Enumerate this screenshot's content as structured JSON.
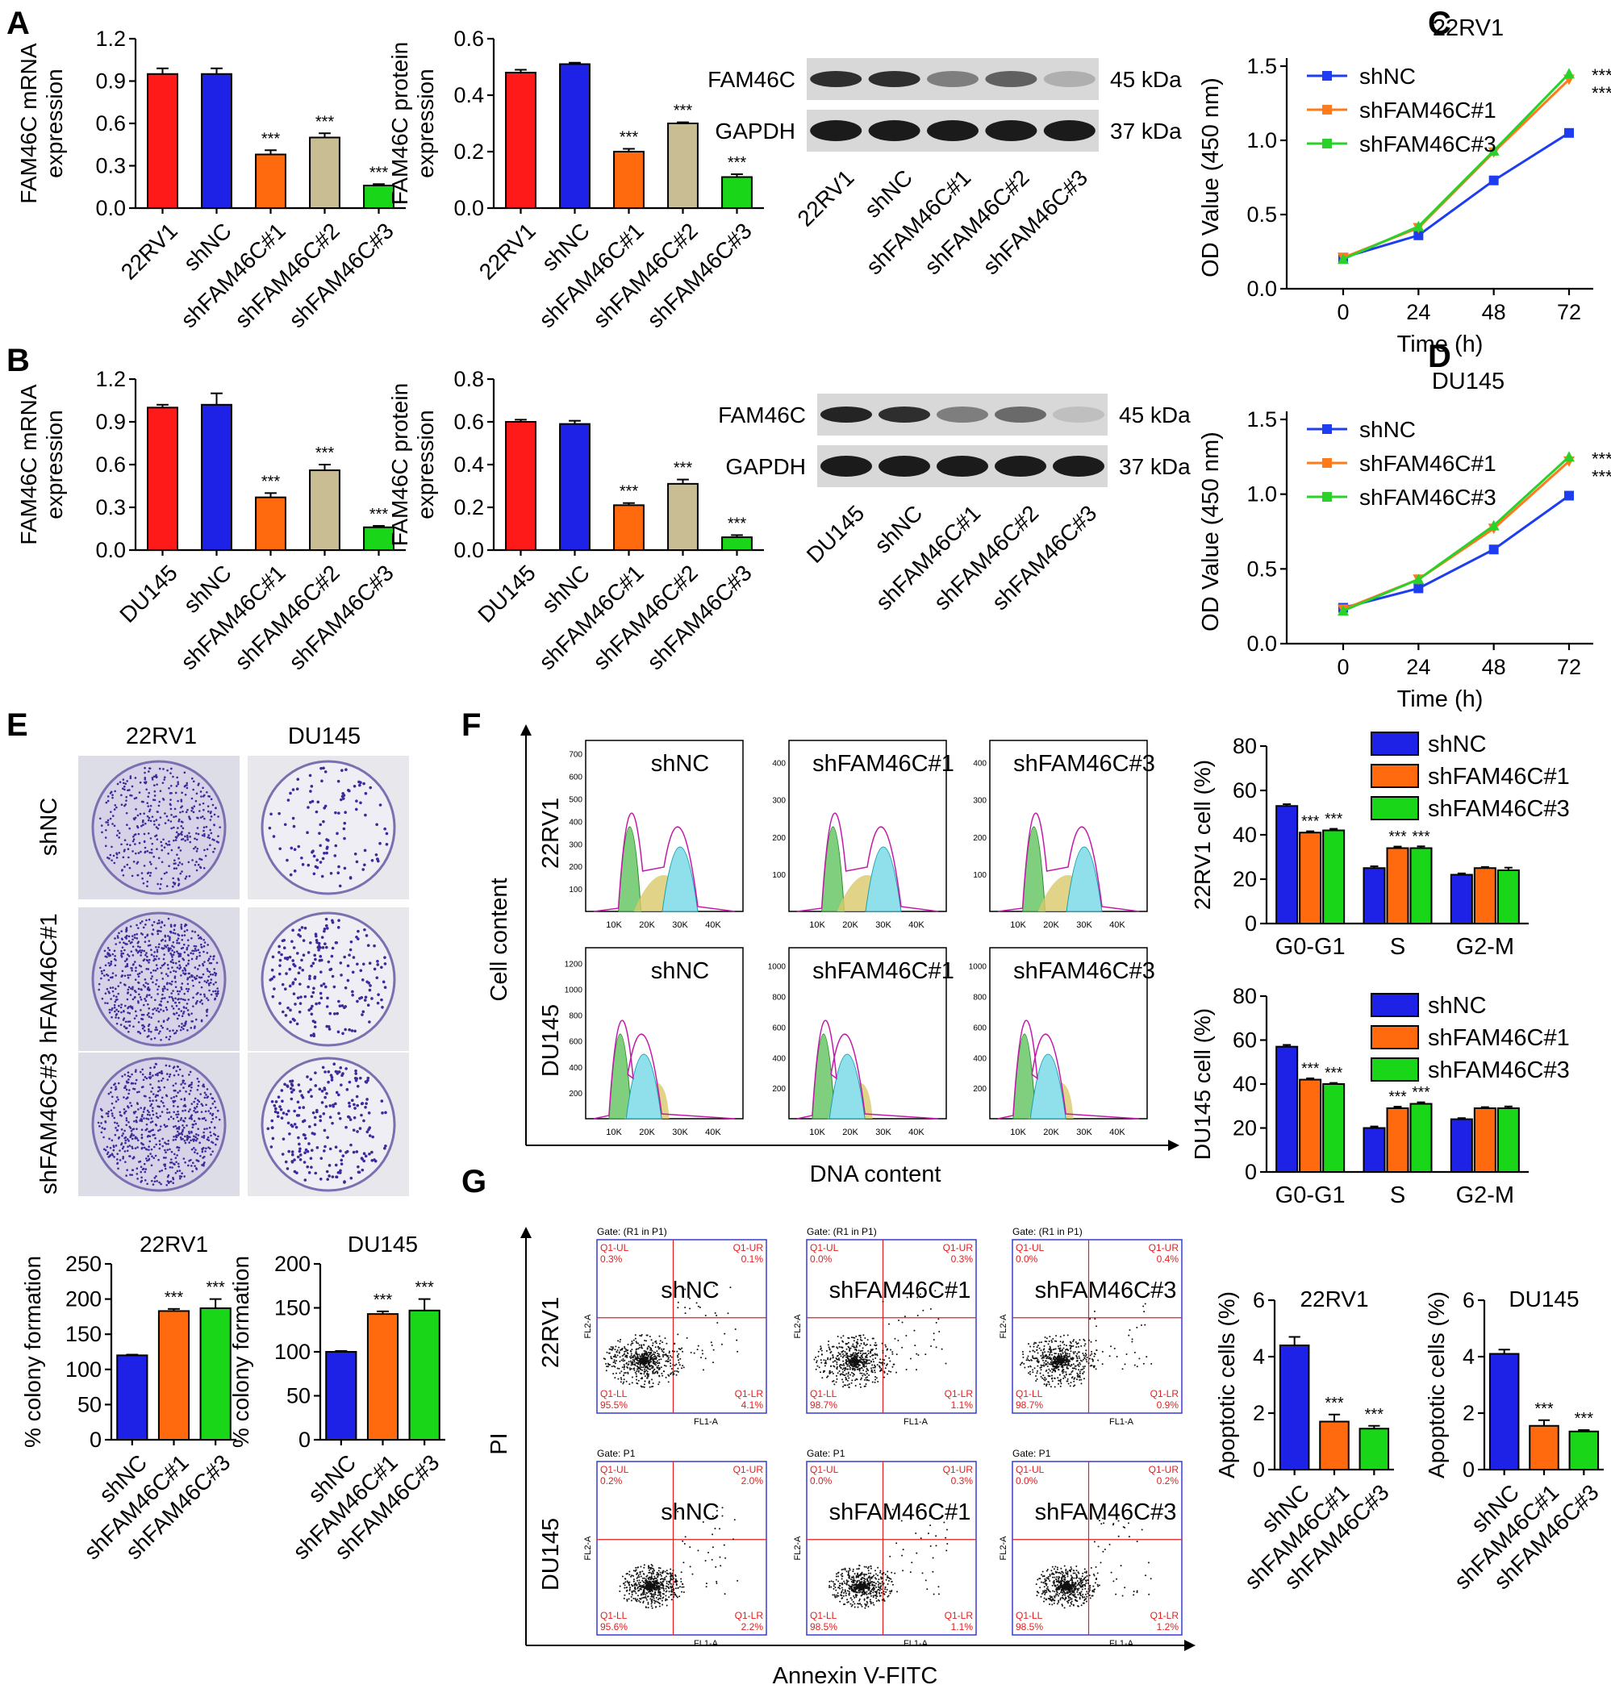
{
  "panel_letters": [
    "A",
    "B",
    "C",
    "D",
    "E",
    "F",
    "G"
  ],
  "colors": {
    "red": "#ff1a1a",
    "blue": "#1e22e6",
    "orange": "#ff6a0e",
    "tan": "#c9bd93",
    "green": "#19d619",
    "line_blue": "#1f3df0",
    "line_orange": "#ff7a1a",
    "line_green": "#2ad12a"
  },
  "sig": "***",
  "chart_data": [
    {
      "id": "A_mrna",
      "type": "bar",
      "ylabel": "FAM46C mRNA expression",
      "ylim": [
        0,
        1.2
      ],
      "yticks": [
        "0.0",
        "0.3",
        "0.6",
        "0.9",
        "1.2"
      ],
      "categories": [
        "22RV1",
        "shNC",
        "shFAM46C#1",
        "shFAM46C#2",
        "shFAM46C#3"
      ],
      "values": [
        0.95,
        0.95,
        0.38,
        0.5,
        0.16
      ],
      "errors": [
        0.04,
        0.04,
        0.03,
        0.03,
        0.01
      ],
      "colors": [
        "red",
        "blue",
        "orange",
        "tan",
        "green"
      ],
      "sig": [
        false,
        false,
        true,
        true,
        true
      ]
    },
    {
      "id": "A_prot",
      "type": "bar",
      "ylabel": "FAM46C protein expression",
      "ylim": [
        0,
        0.6
      ],
      "yticks": [
        "0.0",
        "0.2",
        "0.4",
        "0.6"
      ],
      "categories": [
        "22RV1",
        "shNC",
        "shFAM46C#1",
        "shFAM46C#2",
        "shFAM46C#3"
      ],
      "values": [
        0.48,
        0.51,
        0.2,
        0.3,
        0.11
      ],
      "errors": [
        0.01,
        0.005,
        0.01,
        0.004,
        0.01
      ],
      "colors": [
        "red",
        "blue",
        "orange",
        "tan",
        "green"
      ],
      "sig": [
        false,
        false,
        true,
        true,
        true
      ]
    },
    {
      "id": "B_mrna",
      "type": "bar",
      "ylabel": "FAM46C mRNA expression",
      "ylim": [
        0,
        1.2
      ],
      "yticks": [
        "0.0",
        "0.3",
        "0.6",
        "0.9",
        "1.2"
      ],
      "categories": [
        "DU145",
        "shNC",
        "shFAM46C#1",
        "shFAM46C#2",
        "shFAM46C#3"
      ],
      "values": [
        1.0,
        1.02,
        0.37,
        0.56,
        0.16
      ],
      "errors": [
        0.02,
        0.08,
        0.03,
        0.04,
        0.01
      ],
      "colors": [
        "red",
        "blue",
        "orange",
        "tan",
        "green"
      ],
      "sig": [
        false,
        false,
        true,
        true,
        true
      ]
    },
    {
      "id": "B_prot",
      "type": "bar",
      "ylabel": "FAM46C protein expression",
      "ylim": [
        0,
        0.8
      ],
      "yticks": [
        "0.0",
        "0.2",
        "0.4",
        "0.6",
        "0.8"
      ],
      "categories": [
        "DU145",
        "shNC",
        "shFAM46C#1",
        "shFAM46C#2",
        "shFAM46C#3"
      ],
      "values": [
        0.6,
        0.59,
        0.21,
        0.31,
        0.06
      ],
      "errors": [
        0.01,
        0.015,
        0.01,
        0.02,
        0.01
      ],
      "colors": [
        "red",
        "blue",
        "orange",
        "tan",
        "green"
      ],
      "sig": [
        false,
        false,
        true,
        true,
        true
      ]
    },
    {
      "id": "C",
      "type": "line",
      "title": "22RV1",
      "xlabel": "Time (h)",
      "ylabel": "OD Value (450 nm)",
      "x": [
        0,
        24,
        48,
        72
      ],
      "ylim": [
        0,
        1.5
      ],
      "yticks": [
        "0.0",
        "0.5",
        "1.0",
        "1.5"
      ],
      "series": [
        {
          "name": "shNC",
          "values": [
            0.21,
            0.36,
            0.73,
            1.05
          ],
          "color": "line_blue",
          "marker": "square"
        },
        {
          "name": "shFAM46C#1",
          "values": [
            0.21,
            0.41,
            0.92,
            1.41
          ],
          "color": "line_orange",
          "marker": "tri-down"
        },
        {
          "name": "shFAM46C#3",
          "values": [
            0.2,
            0.42,
            0.93,
            1.45
          ],
          "color": "line_green",
          "marker": "tri-up"
        }
      ],
      "sig_labels": [
        "***",
        "***"
      ]
    },
    {
      "id": "D",
      "type": "line",
      "title": "DU145",
      "xlabel": "Time (h)",
      "ylabel": "OD Value (450 nm)",
      "x": [
        0,
        24,
        48,
        72
      ],
      "ylim": [
        0,
        1.5
      ],
      "yticks": [
        "0.0",
        "0.5",
        "1.0",
        "1.5"
      ],
      "series": [
        {
          "name": "shNC",
          "values": [
            0.24,
            0.37,
            0.63,
            0.99
          ],
          "color": "line_blue",
          "marker": "square"
        },
        {
          "name": "shFAM46C#1",
          "values": [
            0.23,
            0.43,
            0.77,
            1.22
          ],
          "color": "line_orange",
          "marker": "tri-down"
        },
        {
          "name": "shFAM46C#3",
          "values": [
            0.22,
            0.43,
            0.79,
            1.25
          ],
          "color": "line_green",
          "marker": "tri-up"
        }
      ],
      "sig_labels": [
        "***",
        "***"
      ]
    },
    {
      "id": "E_22",
      "type": "bar",
      "title": "22RV1",
      "ylabel": "% colony formation",
      "ylim": [
        0,
        250
      ],
      "yticks": [
        "0",
        "50",
        "100",
        "150",
        "200",
        "250"
      ],
      "categories": [
        "shNC",
        "shFAM46C#1",
        "shFAM46C#3"
      ],
      "values": [
        120,
        183,
        187
      ],
      "errors": [
        1,
        3,
        13
      ],
      "colors": [
        "blue",
        "orange",
        "green"
      ],
      "sig": [
        false,
        true,
        true
      ]
    },
    {
      "id": "E_du",
      "type": "bar",
      "title": "DU145",
      "ylabel": "% colony formation",
      "ylim": [
        0,
        200
      ],
      "yticks": [
        "0",
        "50",
        "100",
        "150",
        "200"
      ],
      "categories": [
        "shNC",
        "shFAM46C#1",
        "shFAM46C#3"
      ],
      "values": [
        100,
        143,
        147
      ],
      "errors": [
        1,
        3,
        13
      ],
      "colors": [
        "blue",
        "orange",
        "green"
      ],
      "sig": [
        false,
        true,
        true
      ]
    },
    {
      "id": "F_22",
      "type": "bar",
      "ylabel": "22RV1 cell (%)",
      "ylim": [
        0,
        80
      ],
      "yticks": [
        "0",
        "20",
        "40",
        "60",
        "80"
      ],
      "categories": [
        "G0-G1",
        "S",
        "G2-M"
      ],
      "series": [
        {
          "name": "shNC",
          "values": [
            53,
            25,
            22
          ],
          "errors": [
            0.8,
            0.8,
            0.6
          ],
          "color": "blue"
        },
        {
          "name": "shFAM46C#1",
          "values": [
            41,
            34,
            25
          ],
          "errors": [
            0.6,
            0.7,
            0.5
          ],
          "color": "orange"
        },
        {
          "name": "shFAM46C#3",
          "values": [
            42,
            34,
            24
          ],
          "errors": [
            0.7,
            0.8,
            1.2
          ],
          "color": "green"
        }
      ],
      "sig": [
        [
          false,
          true,
          true
        ],
        [
          false,
          true,
          true
        ],
        [
          false,
          false,
          false
        ]
      ]
    },
    {
      "id": "F_du",
      "type": "bar",
      "ylabel": "DU145 cell (%)",
      "ylim": [
        0,
        80
      ],
      "yticks": [
        "0",
        "20",
        "40",
        "60",
        "80"
      ],
      "categories": [
        "G0-G1",
        "S",
        "G2-M"
      ],
      "series": [
        {
          "name": "shNC",
          "values": [
            57,
            20,
            24
          ],
          "errors": [
            0.8,
            0.7,
            0.5
          ],
          "color": "blue"
        },
        {
          "name": "shFAM46C#1",
          "values": [
            42,
            29,
            29
          ],
          "errors": [
            0.6,
            0.7,
            0.5
          ],
          "color": "orange"
        },
        {
          "name": "shFAM46C#3",
          "values": [
            40,
            31,
            29
          ],
          "errors": [
            0.5,
            0.7,
            0.8
          ],
          "color": "green"
        }
      ],
      "sig": [
        [
          false,
          true,
          true
        ],
        [
          false,
          true,
          true
        ],
        [
          false,
          false,
          false
        ]
      ]
    },
    {
      "id": "G_22",
      "type": "bar",
      "title": "22RV1",
      "ylabel": "Apoptotic cells (%)",
      "ylim": [
        0,
        6
      ],
      "yticks": [
        "0",
        "2",
        "4",
        "6"
      ],
      "categories": [
        "shNC",
        "shFAM46C#1",
        "shFAM46C#3"
      ],
      "values": [
        4.4,
        1.7,
        1.45
      ],
      "errors": [
        0.3,
        0.25,
        0.1
      ],
      "colors": [
        "blue",
        "orange",
        "green"
      ],
      "sig": [
        false,
        true,
        true
      ]
    },
    {
      "id": "G_du",
      "type": "bar",
      "title": "DU145",
      "ylabel": "Apoptotic cells (%)",
      "ylim": [
        0,
        6
      ],
      "yticks": [
        "0",
        "2",
        "4",
        "6"
      ],
      "categories": [
        "shNC",
        "shFAM46C#1",
        "shFAM46C#3"
      ],
      "values": [
        4.1,
        1.55,
        1.35
      ],
      "errors": [
        0.15,
        0.2,
        0.05
      ],
      "colors": [
        "blue",
        "orange",
        "green"
      ],
      "sig": [
        false,
        true,
        true
      ]
    }
  ],
  "blots": [
    {
      "id": "A",
      "bands": [
        "FAM46C",
        "GAPDH"
      ],
      "sizes": [
        "45 kDa",
        "37 kDa"
      ],
      "lanes": [
        "22RV1",
        "shNC",
        "shFAM46C#1",
        "shFAM46C#2",
        "shFAM46C#3"
      ],
      "fam46c_intensity": [
        0.85,
        0.85,
        0.45,
        0.6,
        0.2
      ]
    },
    {
      "id": "B",
      "bands": [
        "FAM46C",
        "GAPDH"
      ],
      "sizes": [
        "45 kDa",
        "37 kDa"
      ],
      "lanes": [
        "DU145",
        "shNC",
        "shFAM46C#1",
        "shFAM46C#2",
        "shFAM46C#3"
      ],
      "fam46c_intensity": [
        0.9,
        0.85,
        0.45,
        0.55,
        0.12
      ]
    }
  ],
  "colony": {
    "cols": [
      "22RV1",
      "DU145"
    ],
    "rows": [
      "shNC",
      "shFAM46C#1",
      "shFAM46C#3"
    ],
    "rows_visible": [
      "shNC",
      "hFAM46C#1",
      "shFAM46C#3"
    ]
  },
  "flow": {
    "rows": [
      "22RV1",
      "DU145"
    ],
    "samples": [
      "shNC",
      "shFAM46C#1",
      "shFAM46C#3"
    ],
    "xlabel": "DNA content",
    "ylabel": "Cell content",
    "xticks": [
      "10K",
      "20K",
      "30K",
      "40K"
    ],
    "yticks_22rv1": [
      [
        "100",
        "200",
        "300",
        "400",
        "500",
        "600",
        "700"
      ],
      [
        "100",
        "200",
        "300",
        "400"
      ],
      [
        "100",
        "200",
        "300",
        "400"
      ]
    ],
    "yticks_du145": [
      [
        "200",
        "400",
        "600",
        "800",
        "1000",
        "1200"
      ],
      [
        "200",
        "400",
        "600",
        "800",
        "1000"
      ],
      [
        "200",
        "400",
        "600",
        "800",
        "1000"
      ]
    ]
  },
  "apoptosis": {
    "rows": [
      "22RV1",
      "DU145"
    ],
    "samples": [
      "shNC",
      "shFAM46C#1",
      "shFAM46C#3"
    ],
    "xlabel": "Annexin V-FITC",
    "ylabel": "PI",
    "axis_x": "FL1-A",
    "axis_y": "FL2-A",
    "gates": [
      [
        "Gate: (R1 in P1)",
        "Gate: (R1 in P1)",
        "Gate: (R1 in P1)"
      ],
      [
        "Gate: P1",
        "Gate: P1",
        "Gate: P1"
      ]
    ],
    "quadrants": [
      [
        [
          "Q1-UL",
          "0.3%",
          "Q1-UR",
          "0.1%",
          "Q1-LL",
          "95.5%",
          "Q1-LR",
          "4.1%"
        ],
        [
          "Q1-UL",
          "0.0%",
          "Q1-UR",
          "0.3%",
          "Q1-LL",
          "98.7%",
          "Q1-LR",
          "1.1%"
        ],
        [
          "Q1-UL",
          "0.0%",
          "Q1-UR",
          "0.4%",
          "Q1-LL",
          "98.7%",
          "Q1-LR",
          "0.9%"
        ]
      ],
      [
        [
          "Q1-UL",
          "0.2%",
          "Q1-UR",
          "2.0%",
          "Q1-LL",
          "95.6%",
          "Q1-LR",
          "2.2%"
        ],
        [
          "Q1-UL",
          "0.0%",
          "Q1-UR",
          "0.3%",
          "Q1-LL",
          "98.5%",
          "Q1-LR",
          "1.1%"
        ],
        [
          "Q1-UL",
          "0.0%",
          "Q1-UR",
          "0.2%",
          "Q1-LL",
          "98.5%",
          "Q1-LR",
          "1.2%"
        ]
      ]
    ]
  }
}
